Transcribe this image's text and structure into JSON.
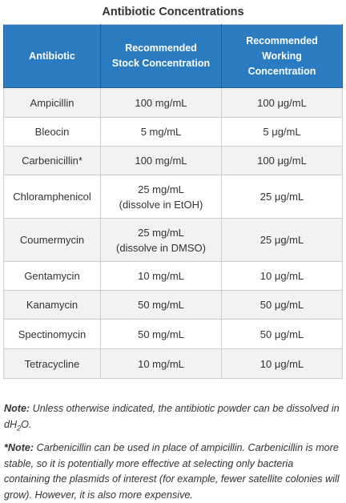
{
  "title": "Antibiotic Concentrations",
  "headers": {
    "antibiotic": "Antibiotic",
    "stock_line1": "Recommended",
    "stock_line2": "Stock Concentration",
    "working_line1": "Recommended",
    "working_line2": "Working",
    "working_line3": "Concentration"
  },
  "rows": [
    {
      "antibiotic": "Ampicillin",
      "stock": "100 mg/mL",
      "stock_note": "",
      "working": "100 μg/mL"
    },
    {
      "antibiotic": "Bleocin",
      "stock": "5 mg/mL",
      "stock_note": "",
      "working": "5 μg/mL"
    },
    {
      "antibiotic": "Carbenicillin*",
      "stock": "100 mg/mL",
      "stock_note": "",
      "working": "100 μg/mL"
    },
    {
      "antibiotic": "Chloramphenicol",
      "stock": "25 mg/mL",
      "stock_note": "(dissolve in EtOH)",
      "working": "25 μg/mL"
    },
    {
      "antibiotic": "Coumermycin",
      "stock": "25 mg/mL",
      "stock_note": "(dissolve in DMSO)",
      "working": "25 μg/mL"
    },
    {
      "antibiotic": "Gentamycin",
      "stock": "10 mg/mL",
      "stock_note": "",
      "working": "10 μg/mL"
    },
    {
      "antibiotic": "Kanamycin",
      "stock": "50 mg/mL",
      "stock_note": "",
      "working": "50 μg/mL"
    },
    {
      "antibiotic": "Spectinomycin",
      "stock": "50 mg/mL",
      "stock_note": "",
      "working": "50 μg/mL"
    },
    {
      "antibiotic": "Tetracycline",
      "stock": "10 mg/mL",
      "stock_note": "",
      "working": "10 μg/mL"
    }
  ],
  "notes": {
    "note1_label": "Note:",
    "note1_text": " Unless otherwise indicated, the antibiotic powder can be dissolved in dH",
    "note1_sub": "2",
    "note1_end": "O.",
    "note2_label": "*Note:",
    "note2_text": " Carbenicillin can be used in place of ampicillin. Carbenicillin is more stable, so it is potentially more effective at selecting only bacteria containing the plasmids of interest (for example, fewer satellite colonies will grow). However, it is also more expensive."
  },
  "colors": {
    "header_bg": "#2b7bc0",
    "stripe_bg": "#f2f2f2"
  }
}
